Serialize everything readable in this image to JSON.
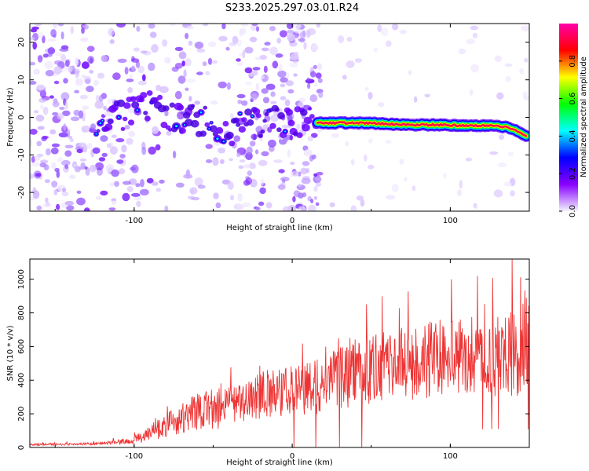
{
  "title": "S233.2025.297.03.01.R24",
  "chart_data": [
    {
      "type": "heatmap",
      "name": "spectrogram",
      "title": "S233.2025.297.03.01.R24",
      "xlabel": "Height of straight line (km)",
      "ylabel": "Frequency (Hz)",
      "xlim": [
        -166,
        150
      ],
      "ylim": [
        -25,
        25
      ],
      "xticks": [
        -100,
        0,
        100
      ],
      "yticks": [
        -20,
        -10,
        0,
        10,
        20
      ],
      "colorbar": {
        "label": "Normalized spectral amplitude",
        "range": [
          0,
          1
        ],
        "ticks": [
          "0.0",
          "0.2",
          "0.4",
          "0.6",
          "0.8"
        ],
        "tick_values": [
          0.0,
          0.2,
          0.4,
          0.6,
          0.8
        ],
        "colors": [
          "#f2f2ff",
          "#8a00ff",
          "#0000ff",
          "#00ffff",
          "#00ff00",
          "#ffff00",
          "#ff0000",
          "#ff00aa"
        ]
      },
      "signal_track": [
        {
          "x": -124,
          "y": -3
        },
        {
          "x": -115,
          "y": 0
        },
        {
          "x": -105,
          "y": 1
        },
        {
          "x": -95,
          "y": 3
        },
        {
          "x": -85,
          "y": 2
        },
        {
          "x": -75,
          "y": 0
        },
        {
          "x": -65,
          "y": 0
        },
        {
          "x": -55,
          "y": -1
        },
        {
          "x": -45,
          "y": -3
        },
        {
          "x": -38,
          "y": -4
        },
        {
          "x": -30,
          "y": -2
        },
        {
          "x": -20,
          "y": -1
        },
        {
          "x": -10,
          "y": -1
        },
        {
          "x": 0,
          "y": -1
        },
        {
          "x": 10,
          "y": -1.5
        },
        {
          "x": 16,
          "y": -1.5
        },
        {
          "x": 30,
          "y": -1.5
        },
        {
          "x": 50,
          "y": -1.5
        },
        {
          "x": 70,
          "y": -2
        },
        {
          "x": 90,
          "y": -2
        },
        {
          "x": 110,
          "y": -2.2
        },
        {
          "x": 130,
          "y": -2.3
        },
        {
          "x": 140,
          "y": -3
        },
        {
          "x": 148,
          "y": -5
        }
      ],
      "strong_signal_range_km": [
        16,
        148
      ]
    },
    {
      "type": "line",
      "name": "snr",
      "xlabel": "Height of straight line (km)",
      "ylabel": "SNR (10 * v/v)",
      "xlim": [
        -166,
        150
      ],
      "ylim": [
        0,
        1120
      ],
      "xticks": [
        -100,
        0,
        100
      ],
      "yticks": [
        0,
        200,
        400,
        600,
        800,
        1000
      ],
      "color": "#ee3333",
      "series": [
        {
          "name": "SNR",
          "x": [
            -166,
            -150,
            -135,
            -120,
            -105,
            -95,
            -85,
            -75,
            -65,
            -55,
            -45,
            -35,
            -25,
            -15,
            -5,
            0,
            10,
            20,
            30,
            40,
            50,
            60,
            70,
            80,
            90,
            100,
            110,
            120,
            130,
            140,
            150
          ],
          "values": [
            18,
            18,
            20,
            25,
            35,
            60,
            110,
            150,
            190,
            220,
            250,
            270,
            300,
            320,
            330,
            340,
            350,
            370,
            410,
            440,
            460,
            480,
            500,
            510,
            520,
            530,
            540,
            540,
            550,
            560,
            540
          ]
        }
      ],
      "annotations": {
        "peak": {
          "x": 139,
          "y": 1120
        },
        "dropouts_km": [
          1,
          15,
          30,
          44
        ]
      }
    }
  ]
}
